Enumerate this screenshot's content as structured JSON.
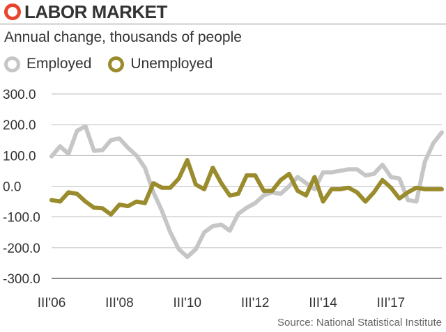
{
  "header": {
    "title": "LABOR MARKET",
    "subtitle": "Annual change, thousands of people"
  },
  "footer": {
    "source": "Source: National Statistical Institute"
  },
  "colors": {
    "employed": "#c6c6c6",
    "unemployed": "#9a8b2c",
    "accent": "#e8452c",
    "grid": "#bdbdbd",
    "axis": "#666666"
  },
  "chart_data": {
    "type": "line",
    "title": "LABOR MARKET",
    "subtitle": "Annual change, thousands of people",
    "xlabel": "",
    "ylabel": "",
    "ylim": [
      -300,
      300
    ],
    "yticks": [
      "300.0",
      "200.0",
      "100.0",
      "0.0",
      "-100.0",
      "-200.0",
      "-300.0"
    ],
    "ytick_values": [
      300,
      200,
      100,
      0,
      -100,
      -200,
      -300
    ],
    "xticks": [
      "III'06",
      "III'08",
      "III'10",
      "III'12",
      "III'14",
      "III'17"
    ],
    "xtick_positions": [
      0,
      8,
      16,
      24,
      32,
      40
    ],
    "x_start": "III'06",
    "legend_position": "top-left",
    "grid": true,
    "series": [
      {
        "name": "Employed",
        "values": [
          97,
          130,
          105,
          180,
          195,
          115,
          117,
          150,
          155,
          125,
          100,
          60,
          -20,
          -80,
          -150,
          -205,
          -230,
          -205,
          -150,
          -130,
          -125,
          -145,
          -90,
          -70,
          -55,
          -30,
          -20,
          -25,
          0,
          30,
          10,
          -10,
          45,
          45,
          50,
          55,
          55,
          35,
          40,
          70,
          30,
          25,
          -45,
          -50,
          80,
          140,
          175
        ]
      },
      {
        "name": "Unemployed",
        "values": [
          -45,
          -50,
          -20,
          -25,
          -50,
          -70,
          -72,
          -92,
          -60,
          -65,
          -50,
          -55,
          10,
          -5,
          -5,
          25,
          85,
          5,
          -10,
          60,
          10,
          -30,
          -25,
          35,
          35,
          -15,
          -15,
          20,
          40,
          -15,
          -30,
          30,
          -50,
          -10,
          -10,
          -5,
          -20,
          -50,
          -20,
          20,
          -5,
          -40,
          -20,
          -5,
          -10,
          -10,
          -10
        ]
      }
    ]
  }
}
